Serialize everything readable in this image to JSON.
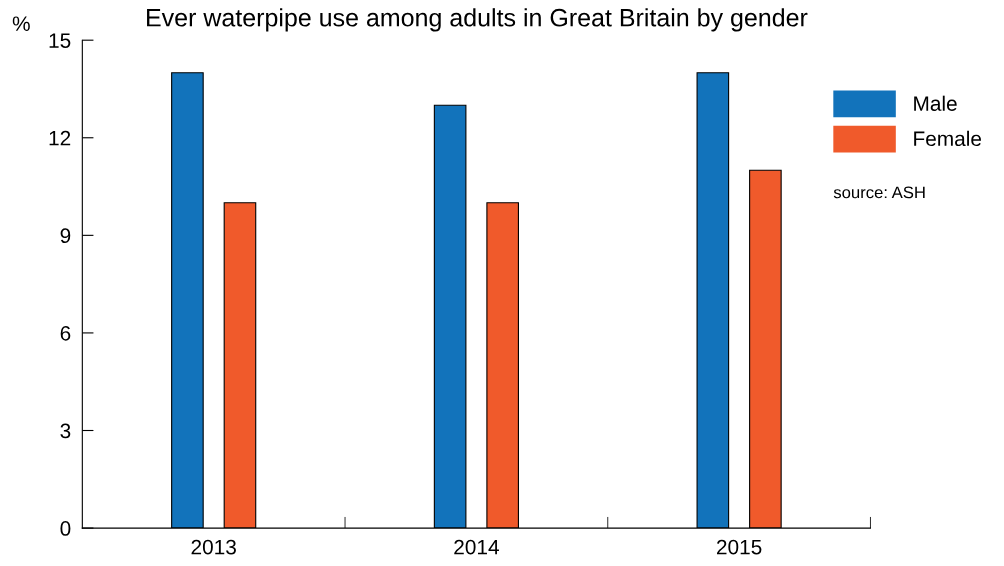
{
  "chart_data": {
    "type": "bar",
    "title": "Ever waterpipe use among adults in Great Britain by gender",
    "ylabel": "%",
    "categories": [
      "2013",
      "2014",
      "2015"
    ],
    "series": [
      {
        "name": "Male",
        "color": "#1273bb",
        "values": [
          14,
          13,
          14
        ]
      },
      {
        "name": "Female",
        "color": "#f05a2b",
        "values": [
          10,
          10,
          11
        ]
      }
    ],
    "ylim": [
      0,
      15
    ],
    "yticks": [
      0,
      3,
      6,
      9,
      12,
      15
    ],
    "grid": false,
    "legend": "right",
    "annotations": [
      "source: ASH"
    ]
  }
}
